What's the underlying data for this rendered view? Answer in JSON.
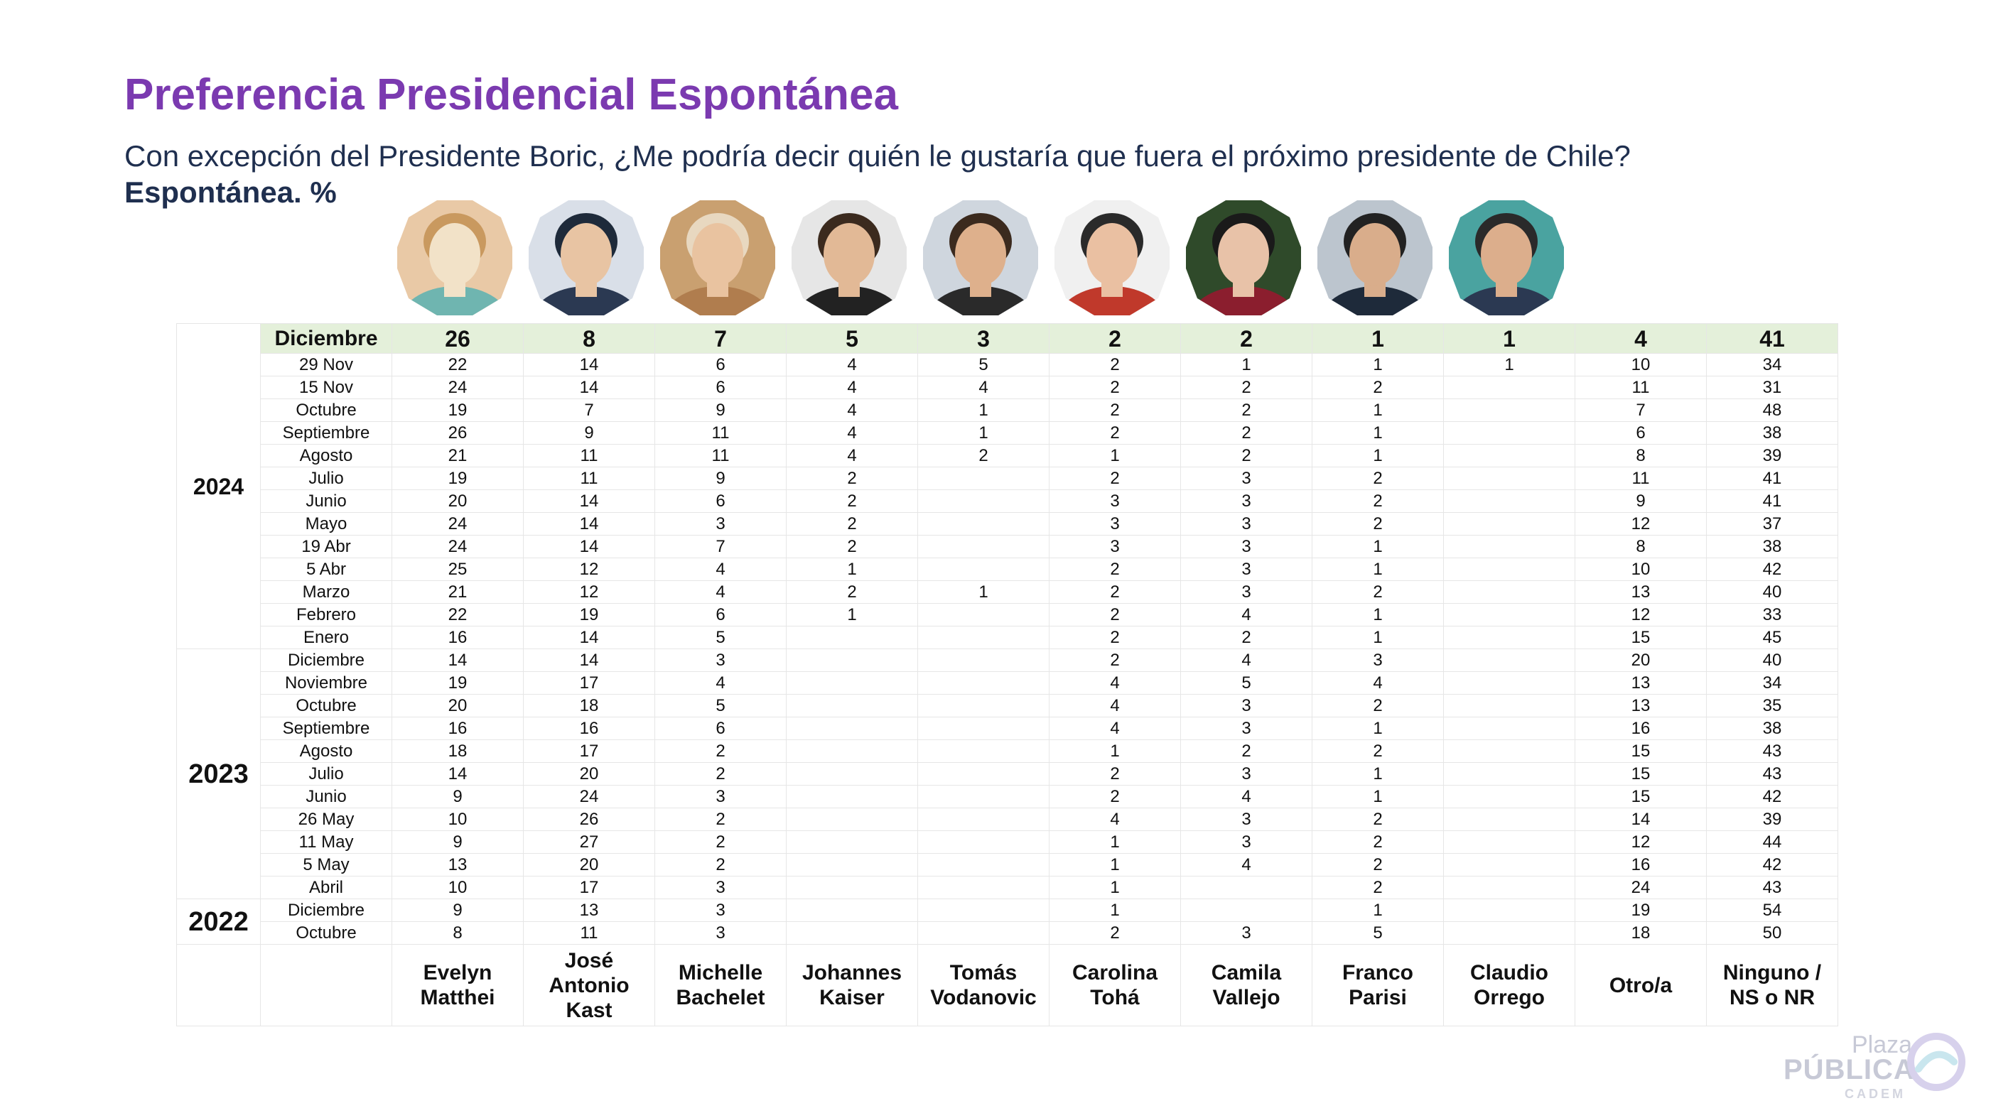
{
  "title": "Preferencia Presidencial Espontánea",
  "question": "Con excepción del Presidente Boric, ¿Me podría decir quién le gustaría que fuera el próximo presidente de Chile?",
  "unit_label": "Espontánea. %",
  "logo": {
    "line1": "Plaza",
    "line2": "PÚBLICA",
    "line3": "CADEM"
  },
  "colors": {
    "title": "#7b3ab0",
    "header_row_bg": "#e4f0da",
    "text_dark": "#1f2f4f"
  },
  "chart_data": {
    "type": "table",
    "columns": [
      [
        "Evelyn",
        "Matthei"
      ],
      [
        "José",
        "Antonio",
        "Kast"
      ],
      [
        "Michelle",
        "Bachelet"
      ],
      [
        "Johannes",
        "Kaiser"
      ],
      [
        "Tomás",
        "Vodanovic"
      ],
      [
        "Carolina",
        "Tohá"
      ],
      [
        "Camila",
        "Vallejo"
      ],
      [
        "Franco",
        "Parisi"
      ],
      [
        "Claudio",
        "Orrego"
      ],
      [
        "Otro/a"
      ],
      [
        "Ninguno /",
        "NS o NR"
      ]
    ],
    "year_groups": [
      {
        "year": "2024",
        "rows": 13
      },
      {
        "year": "2023",
        "rows": 11
      },
      {
        "year": "2022",
        "rows": 2
      }
    ],
    "rows": [
      {
        "period": "Diciembre",
        "values": [
          "26",
          "8",
          "7",
          "5",
          "3",
          "2",
          "2",
          "1",
          "1",
          "4",
          "41"
        ]
      },
      {
        "period": "29 Nov",
        "values": [
          "22",
          "14",
          "6",
          "4",
          "5",
          "2",
          "1",
          "1",
          "1",
          "10",
          "34"
        ]
      },
      {
        "period": "15 Nov",
        "values": [
          "24",
          "14",
          "6",
          "4",
          "4",
          "2",
          "2",
          "2",
          "",
          "11",
          "31"
        ]
      },
      {
        "period": "Octubre",
        "values": [
          "19",
          "7",
          "9",
          "4",
          "1",
          "2",
          "2",
          "1",
          "",
          "7",
          "48"
        ]
      },
      {
        "period": "Septiembre",
        "values": [
          "26",
          "9",
          "11",
          "4",
          "1",
          "2",
          "2",
          "1",
          "",
          "6",
          "38"
        ]
      },
      {
        "period": "Agosto",
        "values": [
          "21",
          "11",
          "11",
          "4",
          "2",
          "1",
          "2",
          "1",
          "",
          "8",
          "39"
        ]
      },
      {
        "period": "Julio",
        "values": [
          "19",
          "11",
          "9",
          "2",
          "",
          "2",
          "3",
          "2",
          "",
          "11",
          "41"
        ]
      },
      {
        "period": "Junio",
        "values": [
          "20",
          "14",
          "6",
          "2",
          "",
          "3",
          "3",
          "2",
          "",
          "9",
          "41"
        ]
      },
      {
        "period": "Mayo",
        "values": [
          "24",
          "14",
          "3",
          "2",
          "",
          "3",
          "3",
          "2",
          "",
          "12",
          "37"
        ]
      },
      {
        "period": "19 Abr",
        "values": [
          "24",
          "14",
          "7",
          "2",
          "",
          "3",
          "3",
          "1",
          "",
          "8",
          "38"
        ]
      },
      {
        "period": "5 Abr",
        "values": [
          "25",
          "12",
          "4",
          "1",
          "",
          "2",
          "3",
          "1",
          "",
          "10",
          "42"
        ]
      },
      {
        "period": "Marzo",
        "values": [
          "21",
          "12",
          "4",
          "2",
          "1",
          "2",
          "3",
          "2",
          "",
          "13",
          "40"
        ]
      },
      {
        "period": "Febrero",
        "values": [
          "22",
          "19",
          "6",
          "1",
          "",
          "2",
          "4",
          "1",
          "",
          "12",
          "33"
        ]
      },
      {
        "period": "Enero",
        "values": [
          "16",
          "14",
          "5",
          "",
          "",
          "2",
          "2",
          "1",
          "",
          "15",
          "45"
        ]
      },
      {
        "period": "Diciembre",
        "values": [
          "14",
          "14",
          "3",
          "",
          "",
          "2",
          "4",
          "3",
          "",
          "20",
          "40"
        ]
      },
      {
        "period": "Noviembre",
        "values": [
          "19",
          "17",
          "4",
          "",
          "",
          "4",
          "5",
          "4",
          "",
          "13",
          "34"
        ]
      },
      {
        "period": "Octubre",
        "values": [
          "20",
          "18",
          "5",
          "",
          "",
          "4",
          "3",
          "2",
          "",
          "13",
          "35"
        ]
      },
      {
        "period": "Septiembre",
        "values": [
          "16",
          "16",
          "6",
          "",
          "",
          "4",
          "3",
          "1",
          "",
          "16",
          "38"
        ]
      },
      {
        "period": "Agosto",
        "values": [
          "18",
          "17",
          "2",
          "",
          "",
          "1",
          "2",
          "2",
          "",
          "15",
          "43"
        ]
      },
      {
        "period": "Julio",
        "values": [
          "14",
          "20",
          "2",
          "",
          "",
          "2",
          "3",
          "1",
          "",
          "15",
          "43"
        ]
      },
      {
        "period": "Junio",
        "values": [
          "9",
          "24",
          "3",
          "",
          "",
          "2",
          "4",
          "1",
          "",
          "15",
          "42"
        ]
      },
      {
        "period": "26 May",
        "values": [
          "10",
          "26",
          "2",
          "",
          "",
          "4",
          "3",
          "2",
          "",
          "14",
          "39"
        ]
      },
      {
        "period": "11 May",
        "values": [
          "9",
          "27",
          "2",
          "",
          "",
          "1",
          "3",
          "2",
          "",
          "12",
          "44"
        ]
      },
      {
        "period": "5 May",
        "values": [
          "13",
          "20",
          "2",
          "",
          "",
          "1",
          "4",
          "2",
          "",
          "16",
          "42"
        ]
      },
      {
        "period": "Abril",
        "values": [
          "10",
          "17",
          "3",
          "",
          "",
          "1",
          "",
          "2",
          "",
          "24",
          "43"
        ]
      },
      {
        "period": "Diciembre",
        "values": [
          "9",
          "13",
          "3",
          "",
          "",
          "1",
          "",
          "1",
          "",
          "19",
          "54"
        ]
      },
      {
        "period": "Octubre",
        "values": [
          "8",
          "11",
          "3",
          "",
          "",
          "2",
          "3",
          "5",
          "",
          "18",
          "50"
        ]
      }
    ]
  }
}
